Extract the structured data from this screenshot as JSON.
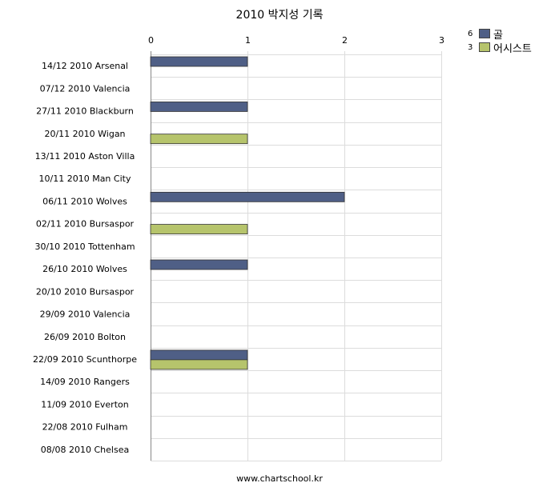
{
  "chart_data": {
    "type": "bar",
    "orientation": "horizontal",
    "title": "2010 박지성 기록",
    "categories": [
      "14/12 2010 Arsenal",
      "07/12 2010 Valencia",
      "27/11 2010 Blackburn",
      "20/11 2010 Wigan",
      "13/11 2010 Aston Villa",
      "10/11 2010 Man City",
      "06/11 2010 Wolves",
      "02/11 2010 Bursaspor",
      "30/10 2010 Tottenham",
      "26/10 2010 Wolves",
      "20/10 2010 Bursaspor",
      "29/09 2010 Valencia",
      "26/09 2010 Bolton",
      "22/09 2010 Scunthorpe",
      "14/09 2010 Rangers",
      "11/09 2010 Everton",
      "22/08 2010 Fulham",
      "08/08 2010 Chelsea"
    ],
    "series": [
      {
        "name": "골",
        "total": "6",
        "color": "#4f5f86",
        "values": [
          1,
          0,
          1,
          0,
          0,
          0,
          2,
          0,
          0,
          1,
          0,
          0,
          0,
          1,
          0,
          0,
          0,
          0
        ]
      },
      {
        "name": "어시스트",
        "total": "3",
        "color": "#b6c46c",
        "values": [
          0,
          0,
          0,
          1,
          0,
          0,
          0,
          1,
          0,
          0,
          0,
          0,
          0,
          1,
          0,
          0,
          0,
          0
        ]
      }
    ],
    "xlim": [
      0,
      3
    ],
    "x_ticks": [
      "0",
      "1",
      "2",
      "3"
    ],
    "x_axis_position": "top",
    "grid": true,
    "legend_position": "top-right"
  },
  "footer": "www.chartschool.kr"
}
